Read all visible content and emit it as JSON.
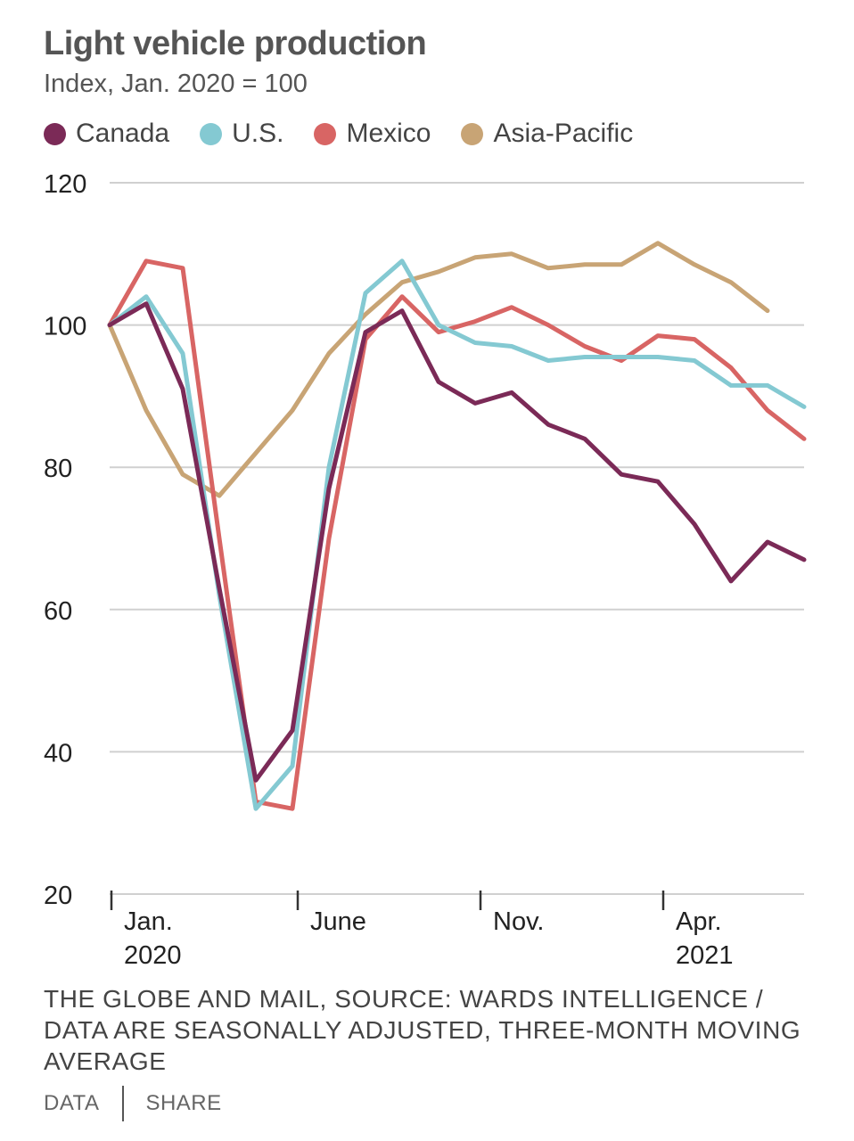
{
  "title": "Light vehicle production",
  "subtitle": "Index, Jan. 2020 = 100",
  "source": "THE GLOBE AND MAIL, SOURCE: WARDS INTELLIGENCE / DATA ARE SEASONALLY ADJUSTED, THREE-MONTH MOVING AVERAGE",
  "footer": {
    "data_label": "DATA",
    "share_label": "SHARE"
  },
  "colors": {
    "Canada": "#7b2a57",
    "U.S.": "#84c9d2",
    "Mexico": "#d86564",
    "Asia-Pacific": "#c8a475",
    "grid": "#d0d0d0",
    "axis": "#333333"
  },
  "chart_data": {
    "type": "line",
    "x": [
      "2020-01",
      "2020-02",
      "2020-03",
      "2020-04",
      "2020-05",
      "2020-06",
      "2020-07",
      "2020-08",
      "2020-09",
      "2020-10",
      "2020-11",
      "2020-12",
      "2021-01",
      "2021-02",
      "2021-03",
      "2021-04",
      "2021-05",
      "2021-06",
      "2021-07",
      "2021-08"
    ],
    "x_ticks": [
      {
        "x": "2020-01",
        "label": "Jan.",
        "year": "2020"
      },
      {
        "x": "2020-06",
        "label": "June",
        "year": ""
      },
      {
        "x": "2020-11",
        "label": "Nov.",
        "year": ""
      },
      {
        "x": "2021-04",
        "label": "Apr.",
        "year": "2021"
      }
    ],
    "y_ticks": [
      20,
      40,
      60,
      80,
      100,
      120
    ],
    "ylim": [
      20,
      120
    ],
    "grid": true,
    "legend_position": "top",
    "series": [
      {
        "name": "Canada",
        "color": "#7b2a57",
        "values": [
          100,
          103,
          91,
          63,
          36,
          43,
          77,
          99,
          102,
          92,
          89,
          90.5,
          86,
          84,
          79,
          78,
          72,
          64,
          69.5,
          67
        ]
      },
      {
        "name": "U.S.",
        "color": "#84c9d2",
        "values": [
          100,
          104,
          96,
          62,
          32,
          38,
          80,
          104.5,
          109,
          100,
          97.5,
          97,
          95,
          95.5,
          95.5,
          95.5,
          95,
          91.5,
          91.5,
          88.5
        ]
      },
      {
        "name": "Mexico",
        "color": "#d86564",
        "values": [
          100,
          109,
          108,
          70,
          33,
          32,
          70,
          98,
          104,
          99,
          100.5,
          102.5,
          100,
          97,
          95,
          98.5,
          98,
          94,
          88,
          84
        ]
      },
      {
        "name": "Asia-Pacific",
        "color": "#c8a475",
        "values": [
          100,
          88,
          79,
          76,
          82,
          88,
          96,
          101.5,
          106,
          107.5,
          109.5,
          110,
          108,
          108.5,
          108.5,
          111.5,
          108.5,
          106,
          102,
          null
        ]
      }
    ]
  }
}
